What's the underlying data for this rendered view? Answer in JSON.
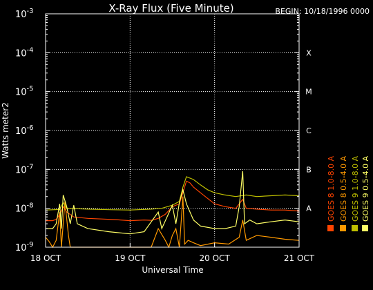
{
  "chart_data": {
    "type": "line",
    "title": "X-Ray Flux (Five Minute)",
    "begin_label": "BEGIN: 10/18/1996 0000",
    "xlabel": "Universal Time",
    "ylabel": "Watts meter2",
    "y_scale": "log",
    "ylim": [
      1e-09,
      0.001
    ],
    "y_ticks": [
      {
        "base": "10",
        "exp": "-9",
        "value": 1e-09
      },
      {
        "base": "10",
        "exp": "-8",
        "value": 1e-08
      },
      {
        "base": "10",
        "exp": "-7",
        "value": 1e-07
      },
      {
        "base": "10",
        "exp": "-6",
        "value": 1e-06
      },
      {
        "base": "10",
        "exp": "-5",
        "value": 1e-05
      },
      {
        "base": "10",
        "exp": "-4",
        "value": 0.0001
      },
      {
        "base": "10",
        "exp": "-3",
        "value": 0.001
      }
    ],
    "xlim": [
      "1996-10-18 00:00",
      "1996-10-21 00:00"
    ],
    "x_ticks": [
      {
        "label": "18 OCT",
        "value": "1996-10-18 00:00"
      },
      {
        "label": "19 OCT",
        "value": "1996-10-19 00:00"
      },
      {
        "label": "20 OCT",
        "value": "1996-10-20 00:00"
      },
      {
        "label": "21 OCT",
        "value": "1996-10-21 00:00"
      }
    ],
    "flare_classes": [
      {
        "label": "A",
        "value": 1e-08
      },
      {
        "label": "B",
        "value": 1e-07
      },
      {
        "label": "C",
        "value": 1e-06
      },
      {
        "label": "M",
        "value": 1e-05
      },
      {
        "label": "X",
        "value": 0.0001
      }
    ],
    "grid": true,
    "legend_position": "right, vertical",
    "series": [
      {
        "name": "GOES 8 1.0-8.0 A",
        "color": "#ff4400",
        "points": [
          [
            "1996-10-18 00:00",
            4.8e-09
          ],
          [
            "1996-10-18 02:00",
            4.8e-09
          ],
          [
            "1996-10-18 03:00",
            5.2e-09
          ],
          [
            "1996-10-18 04:00",
            7e-09
          ],
          [
            "1996-10-18 05:00",
            1.1e-08
          ],
          [
            "1996-10-18 06:00",
            8e-09
          ],
          [
            "1996-10-18 08:00",
            6e-09
          ],
          [
            "1996-10-18 12:00",
            5.5e-09
          ],
          [
            "1996-10-18 16:00",
            5.3e-09
          ],
          [
            "1996-10-18 20:00",
            5.1e-09
          ],
          [
            "1996-10-19 00:00",
            4.8e-09
          ],
          [
            "1996-10-19 04:00",
            5e-09
          ],
          [
            "1996-10-19 06:00",
            4.9e-09
          ],
          [
            "1996-10-19 08:00",
            5.5e-09
          ],
          [
            "1996-10-19 10:00",
            7e-09
          ],
          [
            "1996-10-19 12:00",
            1.1e-08
          ],
          [
            "1996-10-19 14:00",
            1.3e-08
          ],
          [
            "1996-10-19 15:00",
            2.5e-08
          ],
          [
            "1996-10-19 16:00",
            5e-08
          ],
          [
            "1996-10-19 17:00",
            4.5e-08
          ],
          [
            "1996-10-19 18:00",
            3.5e-08
          ],
          [
            "1996-10-19 20:00",
            2.5e-08
          ],
          [
            "1996-10-19 22:00",
            1.8e-08
          ],
          [
            "1996-10-20 00:00",
            1.3e-08
          ],
          [
            "1996-10-20 03:00",
            1.1e-08
          ],
          [
            "1996-10-20 06:00",
            1e-08
          ],
          [
            "1996-10-20 08:00",
            1.7e-08
          ],
          [
            "1996-10-20 09:00",
            1e-08
          ],
          [
            "1996-10-20 12:00",
            9.5e-09
          ],
          [
            "1996-10-20 16:00",
            9e-09
          ],
          [
            "1996-10-20 20:00",
            9e-09
          ],
          [
            "1996-10-21 00:00",
            8.5e-09
          ]
        ]
      },
      {
        "name": "GOES 8 0.5-4.0 A",
        "color": "#ff9900",
        "points": [
          [
            "1996-10-18 00:00",
            1.8e-09
          ],
          [
            "1996-10-18 01:00",
            1.4e-09
          ],
          [
            "1996-10-18 02:00",
            1e-09
          ],
          [
            "1996-10-18 03:00",
            1.5e-09
          ],
          [
            "1996-10-18 04:00",
            8e-09
          ],
          [
            "1996-10-18 04:30",
            1e-09
          ],
          [
            "1996-10-18 05:30",
            1.5e-08
          ],
          [
            "1996-10-18 06:30",
            2e-09
          ],
          [
            "1996-10-18 07:00",
            1e-09
          ],
          [
            "1996-10-18 09:00",
            1e-09
          ],
          [
            "1996-10-18 16:00",
            1e-09
          ],
          [
            "1996-10-19 00:00",
            1e-09
          ],
          [
            "1996-10-19 06:00",
            1e-09
          ],
          [
            "1996-10-19 08:00",
            3e-09
          ],
          [
            "1996-10-19 10:00",
            1.5e-09
          ],
          [
            "1996-10-19 11:00",
            1e-09
          ],
          [
            "1996-10-19 12:00",
            2e-09
          ],
          [
            "1996-10-19 13:00",
            3e-09
          ],
          [
            "1996-10-19 14:00",
            1e-09
          ],
          [
            "1996-10-19 15:00",
            2e-08
          ],
          [
            "1996-10-19 15:30",
            1.2e-09
          ],
          [
            "1996-10-19 16:30",
            1.5e-09
          ],
          [
            "1996-10-19 18:00",
            1.3e-09
          ],
          [
            "1996-10-19 20:00",
            1.1e-09
          ],
          [
            "1996-10-20 00:00",
            1.3e-09
          ],
          [
            "1996-10-20 04:00",
            1.2e-09
          ],
          [
            "1996-10-20 07:00",
            1.8e-09
          ],
          [
            "1996-10-20 08:00",
            5e-09
          ],
          [
            "1996-10-20 09:00",
            1.5e-09
          ],
          [
            "1996-10-20 12:00",
            2e-09
          ],
          [
            "1996-10-20 16:00",
            1.8e-09
          ],
          [
            "1996-10-20 20:00",
            1.6e-09
          ],
          [
            "1996-10-21 00:00",
            1.5e-09
          ]
        ]
      },
      {
        "name": "GOES 9 1.0-8.0 A",
        "color": "#bfbf00",
        "points": [
          [
            "1996-10-18 00:00",
            9e-09
          ],
          [
            "1996-10-18 04:00",
            9.3e-09
          ],
          [
            "1996-10-18 05:00",
            1.4e-08
          ],
          [
            "1996-10-18 06:00",
            1e-08
          ],
          [
            "1996-10-18 12:00",
            9.5e-09
          ],
          [
            "1996-10-18 18:00",
            9.2e-09
          ],
          [
            "1996-10-19 00:00",
            9e-09
          ],
          [
            "1996-10-19 06:00",
            9.5e-09
          ],
          [
            "1996-10-19 09:00",
            1e-08
          ],
          [
            "1996-10-19 12:00",
            1.2e-08
          ],
          [
            "1996-10-19 14:00",
            1.5e-08
          ],
          [
            "1996-10-19 15:00",
            3.5e-08
          ],
          [
            "1996-10-19 16:00",
            6.5e-08
          ],
          [
            "1996-10-19 18:00",
            5.5e-08
          ],
          [
            "1996-10-19 20:00",
            4e-08
          ],
          [
            "1996-10-19 22:00",
            3e-08
          ],
          [
            "1996-10-20 00:00",
            2.5e-08
          ],
          [
            "1996-10-20 03:00",
            2.2e-08
          ],
          [
            "1996-10-20 06:00",
            2e-08
          ],
          [
            "1996-10-20 09:00",
            2.2e-08
          ],
          [
            "1996-10-20 12:00",
            2e-08
          ],
          [
            "1996-10-20 16:00",
            2.1e-08
          ],
          [
            "1996-10-20 20:00",
            2.2e-08
          ],
          [
            "1996-10-21 00:00",
            2.1e-08
          ]
        ]
      },
      {
        "name": "GOES 9 0.5-4.0 A",
        "color": "#ffff66",
        "points": [
          [
            "1996-10-18 00:00",
            3e-09
          ],
          [
            "1996-10-18 02:00",
            3e-09
          ],
          [
            "1996-10-18 03:00",
            4e-09
          ],
          [
            "1996-10-18 04:00",
            1.3e-08
          ],
          [
            "1996-10-18 04:30",
            3e-09
          ],
          [
            "1996-10-18 05:00",
            2.2e-08
          ],
          [
            "1996-10-18 06:00",
            1.1e-08
          ],
          [
            "1996-10-18 07:00",
            4e-09
          ],
          [
            "1996-10-18 08:00",
            1.2e-08
          ],
          [
            "1996-10-18 09:00",
            4e-09
          ],
          [
            "1996-10-18 12:00",
            3e-09
          ],
          [
            "1996-10-18 18:00",
            2.5e-09
          ],
          [
            "1996-10-19 00:00",
            2.2e-09
          ],
          [
            "1996-10-19 04:00",
            2.5e-09
          ],
          [
            "1996-10-19 08:00",
            8e-09
          ],
          [
            "1996-10-19 09:00",
            3e-09
          ],
          [
            "1996-10-19 12:00",
            1.2e-08
          ],
          [
            "1996-10-19 13:00",
            4e-09
          ],
          [
            "1996-10-19 14:00",
            1.4e-08
          ],
          [
            "1996-10-19 15:00",
            3e-08
          ],
          [
            "1996-10-19 16:00",
            1.3e-08
          ],
          [
            "1996-10-19 18:00",
            5e-09
          ],
          [
            "1996-10-19 20:00",
            3.5e-09
          ],
          [
            "1996-10-20 00:00",
            3e-09
          ],
          [
            "1996-10-20 03:00",
            3e-09
          ],
          [
            "1996-10-20 06:00",
            3.5e-09
          ],
          [
            "1996-10-20 07:00",
            1.1e-08
          ],
          [
            "1996-10-20 08:00",
            9e-08
          ],
          [
            "1996-10-20 08:30",
            4e-09
          ],
          [
            "1996-10-20 10:00",
            5e-09
          ],
          [
            "1996-10-20 12:00",
            4e-09
          ],
          [
            "1996-10-20 16:00",
            4.5e-09
          ],
          [
            "1996-10-20 20:00",
            5e-09
          ],
          [
            "1996-10-21 00:00",
            4.5e-09
          ]
        ]
      }
    ]
  }
}
